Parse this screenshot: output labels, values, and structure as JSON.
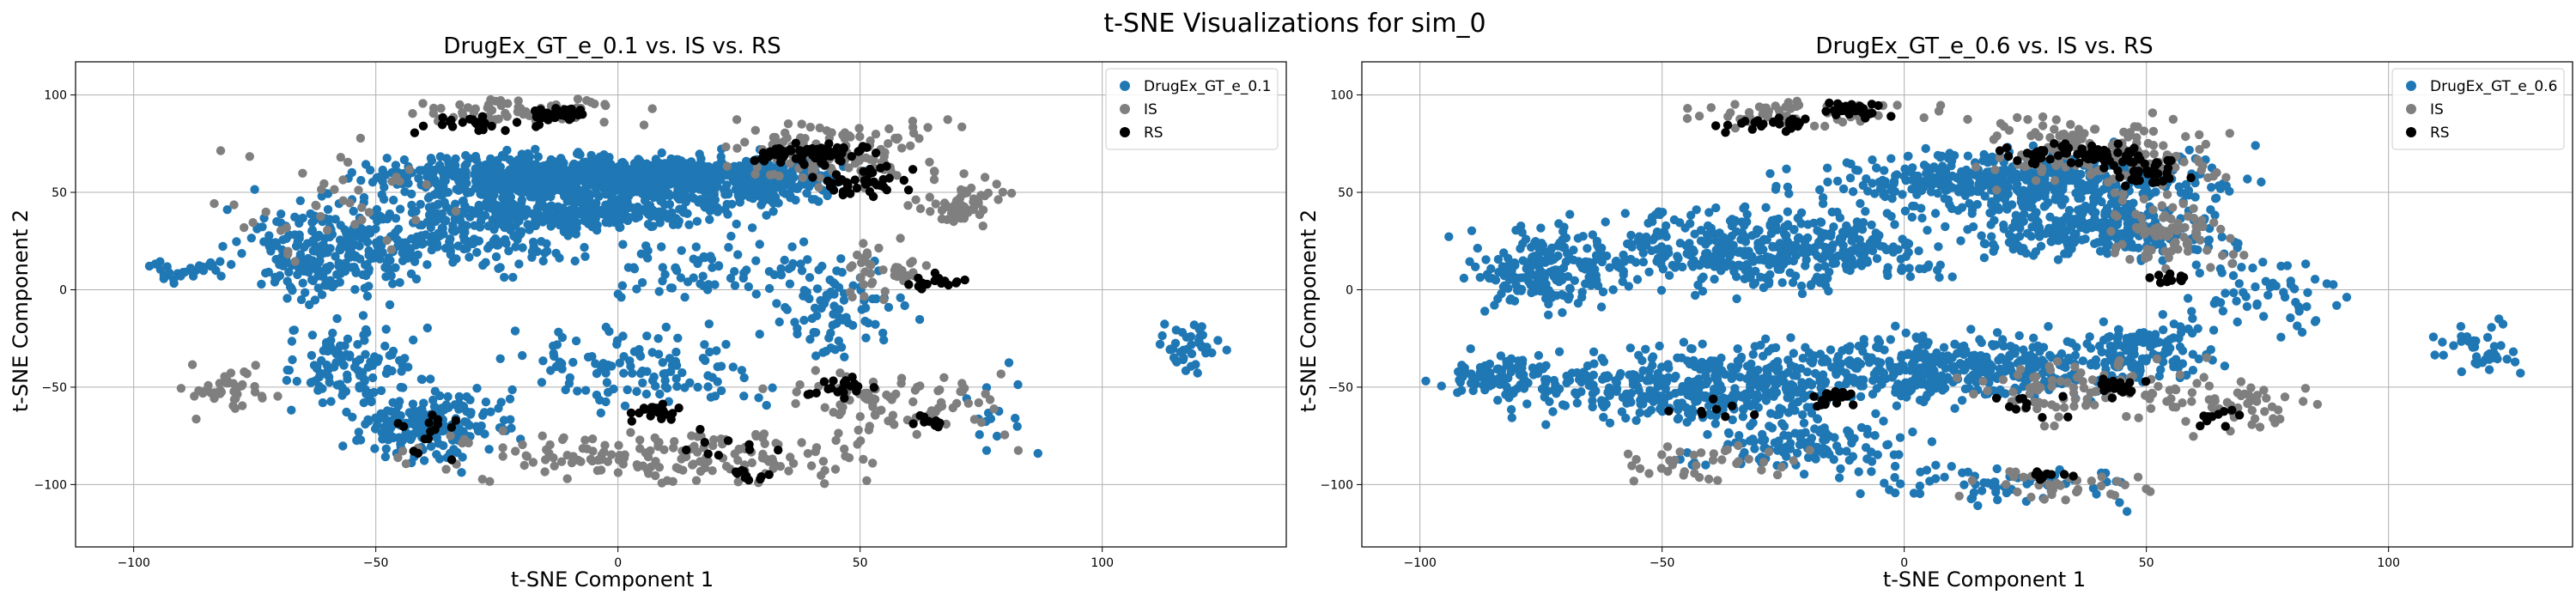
{
  "figure": {
    "title": "t-SNE Visualizations for sim_0"
  },
  "chart_data": [
    {
      "type": "scatter",
      "title": "DrugEx_GT_e_0.1 vs. IS vs. RS",
      "xlabel": "t-SNE Component 1",
      "ylabel": "t-SNE Component 2",
      "xlim": [
        -112,
        138
      ],
      "ylim": [
        -132,
        117
      ],
      "xticks": [
        -100,
        -50,
        0,
        50,
        100
      ],
      "yticks": [
        -100,
        -50,
        0,
        50,
        100
      ],
      "grid": true,
      "legend_position": "top-right",
      "series": [
        {
          "name": "DrugEx_GT_e_0.1",
          "color": "#1f77b4",
          "regions": [
            {
              "cx": -8,
              "cy": 58,
              "rx": 42,
              "ry": 12,
              "n": 900
            },
            {
              "cx": -5,
              "cy": 40,
              "rx": 35,
              "ry": 10,
              "n": 300
            },
            {
              "cx": 30,
              "cy": 58,
              "rx": 18,
              "ry": 15,
              "n": 250
            },
            {
              "cx": -58,
              "cy": 20,
              "rx": 22,
              "ry": 28,
              "n": 260
            },
            {
              "cx": -88,
              "cy": 10,
              "rx": 10,
              "ry": 6,
              "n": 30
            },
            {
              "cx": -30,
              "cy": 30,
              "rx": 25,
              "ry": 22,
              "n": 180
            },
            {
              "cx": -38,
              "cy": -70,
              "rx": 16,
              "ry": 20,
              "n": 200
            },
            {
              "cx": -55,
              "cy": -40,
              "rx": 15,
              "ry": 28,
              "n": 120
            },
            {
              "cx": 5,
              "cy": -40,
              "rx": 30,
              "ry": 25,
              "n": 120
            },
            {
              "cx": 45,
              "cy": -10,
              "rx": 15,
              "ry": 25,
              "n": 80
            },
            {
              "cx": 118,
              "cy": -30,
              "rx": 9,
              "ry": 14,
              "n": 40
            },
            {
              "cx": 80,
              "cy": -60,
              "rx": 10,
              "ry": 30,
              "n": 15
            },
            {
              "cx": 20,
              "cy": 10,
              "rx": 30,
              "ry": 18,
              "n": 80
            }
          ]
        },
        {
          "name": "IS",
          "color": "#7f7f7f",
          "regions": [
            {
              "cx": -20,
              "cy": 92,
              "rx": 25,
              "ry": 7,
              "n": 70
            },
            {
              "cx": 45,
              "cy": 70,
              "rx": 25,
              "ry": 18,
              "n": 130
            },
            {
              "cx": 70,
              "cy": 45,
              "rx": 12,
              "ry": 14,
              "n": 60
            },
            {
              "cx": 10,
              "cy": -85,
              "rx": 50,
              "ry": 15,
              "n": 170
            },
            {
              "cx": -80,
              "cy": -50,
              "rx": 10,
              "ry": 15,
              "n": 40
            },
            {
              "cx": 55,
              "cy": -60,
              "rx": 25,
              "ry": 22,
              "n": 90
            },
            {
              "cx": 55,
              "cy": 10,
              "rx": 8,
              "ry": 15,
              "n": 40
            },
            {
              "cx": -60,
              "cy": 45,
              "rx": 25,
              "ry": 30,
              "n": 40
            }
          ]
        },
        {
          "name": "RS",
          "color": "#000000",
          "regions": [
            {
              "cx": -12,
              "cy": 90,
              "rx": 8,
              "ry": 4,
              "n": 40
            },
            {
              "cx": -30,
              "cy": 85,
              "rx": 15,
              "ry": 5,
              "n": 25
            },
            {
              "cx": 40,
              "cy": 70,
              "rx": 15,
              "ry": 6,
              "n": 60
            },
            {
              "cx": 50,
              "cy": 55,
              "rx": 10,
              "ry": 8,
              "n": 40
            },
            {
              "cx": 65,
              "cy": 5,
              "rx": 6,
              "ry": 4,
              "n": 15
            },
            {
              "cx": 8,
              "cy": -62,
              "rx": 6,
              "ry": 5,
              "n": 20
            },
            {
              "cx": 45,
              "cy": -50,
              "rx": 8,
              "ry": 6,
              "n": 20
            },
            {
              "cx": 28,
              "cy": -95,
              "rx": 6,
              "ry": 3,
              "n": 10
            },
            {
              "cx": 65,
              "cy": -68,
              "rx": 5,
              "ry": 5,
              "n": 10
            },
            {
              "cx": -40,
              "cy": -75,
              "rx": 10,
              "ry": 12,
              "n": 15
            },
            {
              "cx": 20,
              "cy": -75,
              "rx": 15,
              "ry": 15,
              "n": 10
            }
          ]
        }
      ]
    },
    {
      "type": "scatter",
      "title": "DrugEx_GT_e_0.6 vs. IS vs. RS",
      "xlabel": "t-SNE Component 1",
      "ylabel": "t-SNE Component 2",
      "xlim": [
        -112,
        138
      ],
      "ylim": [
        -132,
        117
      ],
      "xticks": [
        -100,
        -50,
        0,
        50,
        100
      ],
      "yticks": [
        -100,
        -50,
        0,
        50,
        100
      ],
      "grid": true,
      "legend_position": "top-right",
      "series": [
        {
          "name": "DrugEx_GT_e_0.6",
          "color": "#1f77b4",
          "regions": [
            {
              "cx": -30,
              "cy": 20,
              "rx": 40,
              "ry": 22,
              "n": 450
            },
            {
              "cx": 25,
              "cy": 55,
              "rx": 45,
              "ry": 18,
              "n": 500
            },
            {
              "cx": 40,
              "cy": 30,
              "rx": 25,
              "ry": 15,
              "n": 250
            },
            {
              "cx": -75,
              "cy": 10,
              "rx": 18,
              "ry": 25,
              "n": 180
            },
            {
              "cx": -40,
              "cy": -50,
              "rx": 40,
              "ry": 22,
              "n": 450
            },
            {
              "cx": 10,
              "cy": -40,
              "rx": 35,
              "ry": 18,
              "n": 350
            },
            {
              "cx": 50,
              "cy": -30,
              "rx": 15,
              "ry": 20,
              "n": 120
            },
            {
              "cx": -85,
              "cy": -45,
              "rx": 12,
              "ry": 12,
              "n": 80
            },
            {
              "cx": 118,
              "cy": -30,
              "rx": 9,
              "ry": 14,
              "n": 40
            },
            {
              "cx": 20,
              "cy": -100,
              "rx": 30,
              "ry": 12,
              "n": 60
            },
            {
              "cx": -20,
              "cy": -80,
              "rx": 25,
              "ry": 15,
              "n": 120
            },
            {
              "cx": 75,
              "cy": 0,
              "rx": 20,
              "ry": 25,
              "n": 60
            }
          ]
        },
        {
          "name": "IS",
          "color": "#7f7f7f",
          "regions": [
            {
              "cx": 40,
              "cy": 70,
              "rx": 30,
              "ry": 18,
              "n": 150
            },
            {
              "cx": -20,
              "cy": 90,
              "rx": 25,
              "ry": 8,
              "n": 60
            },
            {
              "cx": 55,
              "cy": 30,
              "rx": 15,
              "ry": 20,
              "n": 80
            },
            {
              "cx": 35,
              "cy": -50,
              "rx": 25,
              "ry": 20,
              "n": 90
            },
            {
              "cx": -40,
              "cy": -90,
              "rx": 20,
              "ry": 10,
              "n": 40
            },
            {
              "cx": 70,
              "cy": -60,
              "rx": 15,
              "ry": 15,
              "n": 50
            },
            {
              "cx": 30,
              "cy": -100,
              "rx": 20,
              "ry": 10,
              "n": 40
            }
          ]
        },
        {
          "name": "RS",
          "color": "#000000",
          "regions": [
            {
              "cx": -10,
              "cy": 92,
              "rx": 7,
              "ry": 4,
              "n": 40
            },
            {
              "cx": -30,
              "cy": 85,
              "rx": 15,
              "ry": 5,
              "n": 25
            },
            {
              "cx": 35,
              "cy": 70,
              "rx": 15,
              "ry": 6,
              "n": 60
            },
            {
              "cx": 50,
              "cy": 60,
              "rx": 10,
              "ry": 8,
              "n": 40
            },
            {
              "cx": 55,
              "cy": 5,
              "rx": 5,
              "ry": 4,
              "n": 12
            },
            {
              "cx": -15,
              "cy": -55,
              "rx": 8,
              "ry": 5,
              "n": 20
            },
            {
              "cx": 45,
              "cy": -50,
              "rx": 6,
              "ry": 5,
              "n": 20
            },
            {
              "cx": 30,
              "cy": -95,
              "rx": 6,
              "ry": 3,
              "n": 10
            },
            {
              "cx": 65,
              "cy": -65,
              "rx": 5,
              "ry": 5,
              "n": 10
            },
            {
              "cx": 25,
              "cy": -60,
              "rx": 8,
              "ry": 8,
              "n": 10
            },
            {
              "cx": -40,
              "cy": -60,
              "rx": 8,
              "ry": 8,
              "n": 8
            }
          ]
        }
      ]
    }
  ]
}
